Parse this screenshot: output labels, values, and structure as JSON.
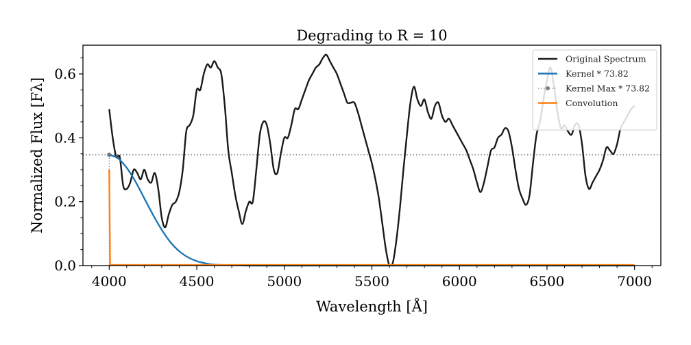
{
  "chart_data": {
    "type": "line",
    "title": "Degrading to R = 10",
    "xlabel": "Wavelength [Å]",
    "ylabel": "Normalized Flux [Fλ]",
    "xlim": [
      3850,
      7150
    ],
    "ylim": [
      0,
      0.69
    ],
    "xticks": [
      4000,
      4500,
      5000,
      5500,
      6000,
      6500,
      7000
    ],
    "yticks": [
      0.0,
      0.2,
      0.4,
      0.6
    ],
    "xtick_labels": [
      "4000",
      "4500",
      "5000",
      "5500",
      "6000",
      "6500",
      "7000"
    ],
    "ytick_labels": [
      "0.0",
      "0.2",
      "0.4",
      "0.6"
    ],
    "grid": false,
    "legend_position": "top-right",
    "series": [
      {
        "name": "Original Spectrum",
        "color": "#1a1a1a",
        "style": "solid",
        "x": [
          4000,
          4020,
          4040,
          4060,
          4080,
          4100,
          4120,
          4140,
          4160,
          4180,
          4200,
          4220,
          4240,
          4260,
          4280,
          4300,
          4320,
          4340,
          4360,
          4380,
          4400,
          4420,
          4440,
          4460,
          4480,
          4500,
          4520,
          4540,
          4560,
          4580,
          4600,
          4620,
          4640,
          4660,
          4680,
          4700,
          4720,
          4740,
          4760,
          4780,
          4800,
          4820,
          4840,
          4860,
          4880,
          4900,
          4920,
          4940,
          4960,
          4980,
          5000,
          5020,
          5040,
          5060,
          5080,
          5100,
          5120,
          5140,
          5160,
          5180,
          5200,
          5220,
          5240,
          5260,
          5280,
          5300,
          5320,
          5340,
          5360,
          5380,
          5400,
          5420,
          5440,
          5460,
          5480,
          5500,
          5520,
          5540,
          5560,
          5580,
          5600,
          5620,
          5640,
          5660,
          5680,
          5700,
          5720,
          5740,
          5760,
          5780,
          5800,
          5820,
          5840,
          5860,
          5880,
          5900,
          5920,
          5940,
          5960,
          5980,
          6000,
          6020,
          6040,
          6060,
          6080,
          6100,
          6120,
          6140,
          6160,
          6180,
          6200,
          6220,
          6240,
          6260,
          6280,
          6300,
          6320,
          6340,
          6360,
          6380,
          6400,
          6420,
          6440,
          6460,
          6480,
          6500,
          6520,
          6540,
          6560,
          6580,
          6600,
          6620,
          6640,
          6660,
          6680,
          6700,
          6720,
          6740,
          6760,
          6780,
          6800,
          6820,
          6840,
          6860,
          6880,
          6900,
          6920,
          6940,
          6960,
          6980,
          7000
        ],
        "y": [
          0.49,
          0.4,
          0.34,
          0.34,
          0.25,
          0.24,
          0.26,
          0.3,
          0.29,
          0.27,
          0.3,
          0.27,
          0.26,
          0.29,
          0.24,
          0.15,
          0.12,
          0.16,
          0.19,
          0.2,
          0.23,
          0.3,
          0.42,
          0.44,
          0.47,
          0.55,
          0.55,
          0.6,
          0.63,
          0.62,
          0.64,
          0.62,
          0.6,
          0.5,
          0.36,
          0.29,
          0.22,
          0.17,
          0.13,
          0.17,
          0.2,
          0.2,
          0.3,
          0.41,
          0.45,
          0.44,
          0.38,
          0.3,
          0.29,
          0.35,
          0.4,
          0.4,
          0.44,
          0.49,
          0.49,
          0.52,
          0.55,
          0.58,
          0.6,
          0.62,
          0.63,
          0.65,
          0.66,
          0.64,
          0.62,
          0.6,
          0.57,
          0.54,
          0.51,
          0.51,
          0.51,
          0.48,
          0.44,
          0.4,
          0.36,
          0.32,
          0.27,
          0.21,
          0.13,
          0.05,
          0.0,
          0.01,
          0.08,
          0.18,
          0.3,
          0.41,
          0.51,
          0.56,
          0.52,
          0.5,
          0.52,
          0.48,
          0.46,
          0.5,
          0.51,
          0.47,
          0.45,
          0.46,
          0.44,
          0.42,
          0.4,
          0.38,
          0.36,
          0.33,
          0.3,
          0.26,
          0.23,
          0.26,
          0.31,
          0.36,
          0.37,
          0.4,
          0.41,
          0.43,
          0.42,
          0.37,
          0.3,
          0.24,
          0.21,
          0.19,
          0.22,
          0.32,
          0.41,
          0.45,
          0.52,
          0.58,
          0.62,
          0.56,
          0.48,
          0.43,
          0.44,
          0.42,
          0.41,
          0.44,
          0.44,
          0.38,
          0.28,
          0.24,
          0.26,
          0.28,
          0.3,
          0.33,
          0.37,
          0.36,
          0.35,
          0.38,
          0.43,
          0.45,
          0.47,
          0.49,
          0.5
        ]
      },
      {
        "name": "Kernel * 73.82",
        "color": "#1f77b4",
        "style": "solid",
        "x": [
          4000,
          4050,
          4100,
          4150,
          4200,
          4250,
          4300,
          4350,
          4400,
          4450,
          4500,
          4550,
          4600,
          4700,
          4800,
          5000,
          5500,
          6000,
          6500,
          7000
        ],
        "y": [
          0.347,
          0.336,
          0.306,
          0.263,
          0.211,
          0.159,
          0.112,
          0.073,
          0.045,
          0.026,
          0.014,
          0.007,
          0.003,
          0.001,
          0.0,
          0.0,
          0.0,
          0.0,
          0.0,
          0.0
        ]
      },
      {
        "name": "Kernel Max * 73.82",
        "color": "#7f7f7f",
        "style": "dotted-marker",
        "x": [
          4000,
          4000
        ],
        "y": [
          0.0,
          0.347
        ],
        "hline_y": 0.347
      },
      {
        "name": "Convolution",
        "color": "#ff7f0e",
        "style": "solid",
        "x": [
          4000,
          4005,
          4010,
          5000,
          6000,
          7000
        ],
        "y": [
          0.3,
          0.002,
          0.002,
          0.002,
          0.002,
          0.002
        ]
      }
    ]
  }
}
